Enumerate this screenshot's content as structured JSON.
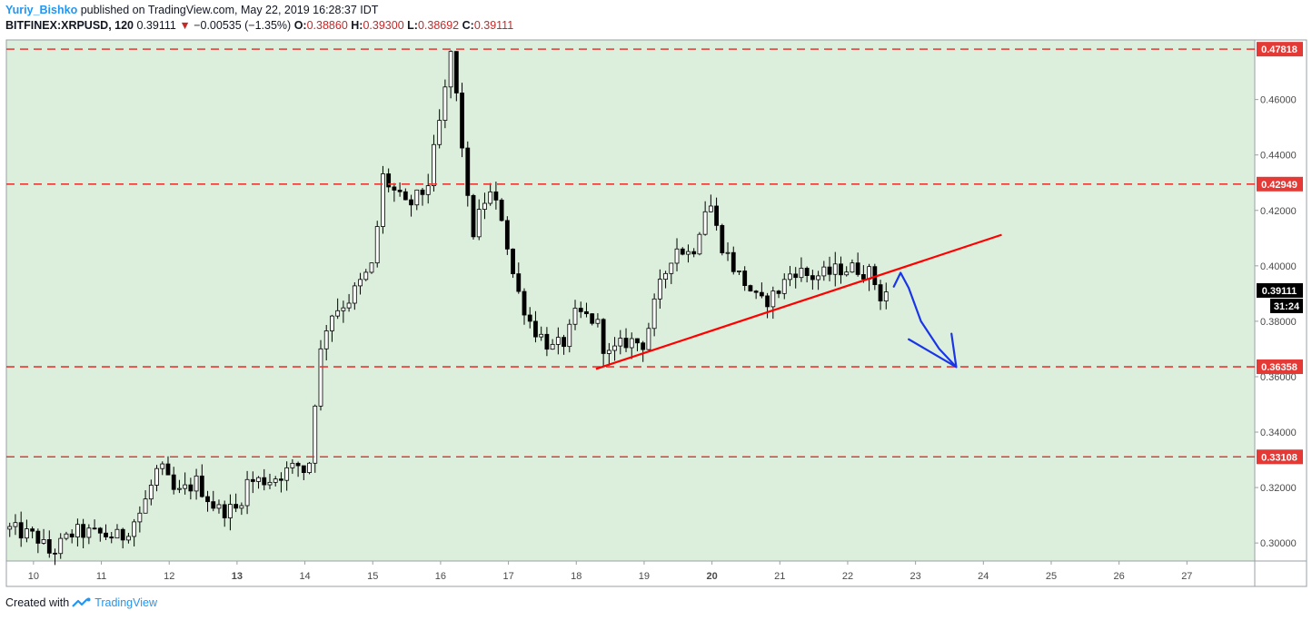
{
  "header": {
    "author": "Yuriy_Bishko",
    "published": "published on TradingView.com, May 22, 2019 16:28:37 IDT",
    "symbol": "BITFINEX:XRPUSD, 120",
    "last": "0.39111",
    "change": "−0.00535 (−1.35%)",
    "o_label": "O:",
    "o": "0.38860",
    "h_label": "H:",
    "h": "0.39300",
    "l_label": "L:",
    "l": "0.38692",
    "c_label": "C:",
    "c": "0.39111"
  },
  "footer": {
    "created": "Created with",
    "brand": "TradingView"
  },
  "colors": {
    "plot_bg": "#dcefdc",
    "level_line": "#e53935",
    "trend_line": "#ff0000",
    "arrow": "#1a35e8",
    "bull_candle": "#ffffff",
    "bear_candle": "#000000"
  },
  "chart_data": {
    "type": "candlestick",
    "y_range": [
      0.2935,
      0.4815
    ],
    "x_range": [
      9.6,
      28.0
    ],
    "y_ticks": [
      "0.30000",
      "0.32000",
      "0.34000",
      "0.36000",
      "0.38000",
      "0.40000",
      "0.42000",
      "0.44000",
      "0.46000"
    ],
    "x_ticks": [
      {
        "label": "10",
        "x": 10,
        "bold": false
      },
      {
        "label": "11",
        "x": 11,
        "bold": false
      },
      {
        "label": "12",
        "x": 12,
        "bold": false
      },
      {
        "label": "13",
        "x": 13,
        "bold": true
      },
      {
        "label": "14",
        "x": 14,
        "bold": false
      },
      {
        "label": "15",
        "x": 15,
        "bold": false
      },
      {
        "label": "16",
        "x": 16,
        "bold": false
      },
      {
        "label": "17",
        "x": 17,
        "bold": false
      },
      {
        "label": "18",
        "x": 18,
        "bold": false
      },
      {
        "label": "19",
        "x": 19,
        "bold": false
      },
      {
        "label": "20",
        "x": 20,
        "bold": true
      },
      {
        "label": "21",
        "x": 21,
        "bold": false
      },
      {
        "label": "22",
        "x": 22,
        "bold": false
      },
      {
        "label": "23",
        "x": 23,
        "bold": false
      },
      {
        "label": "24",
        "x": 24,
        "bold": false
      },
      {
        "label": "25",
        "x": 25,
        "bold": false
      },
      {
        "label": "26",
        "x": 26,
        "bold": false
      },
      {
        "label": "27",
        "x": 27,
        "bold": false
      }
    ],
    "horizontal_levels": [
      "0.47818",
      "0.42949",
      "0.36358",
      "0.33108"
    ],
    "current_price": "0.39111",
    "countdown": "31:24",
    "trendline": {
      "x1": 18.29,
      "y1": 0.3628,
      "x2": 24.27,
      "y2": 0.4112
    },
    "projection_arrow": [
      [
        22.68,
        0.3925
      ],
      [
        22.78,
        0.3975
      ],
      [
        22.9,
        0.392
      ],
      [
        23.08,
        0.38
      ],
      [
        23.35,
        0.37
      ],
      [
        23.6,
        0.3635
      ]
    ],
    "arrow_head": [
      [
        22.9,
        0.3735
      ],
      [
        23.6,
        0.3635
      ],
      [
        23.53,
        0.3755
      ]
    ],
    "candle_keypoints": [
      [
        9.65,
        0.305
      ],
      [
        10.05,
        0.302
      ],
      [
        10.25,
        0.296
      ],
      [
        10.6,
        0.304
      ],
      [
        11.0,
        0.303
      ],
      [
        11.3,
        0.302
      ],
      [
        11.6,
        0.312
      ],
      [
        11.85,
        0.328
      ],
      [
        12.1,
        0.317
      ],
      [
        12.4,
        0.322
      ],
      [
        12.7,
        0.312
      ],
      [
        13.0,
        0.312
      ],
      [
        13.15,
        0.322
      ],
      [
        13.5,
        0.323
      ],
      [
        13.9,
        0.328
      ],
      [
        14.05,
        0.325
      ],
      [
        14.2,
        0.365
      ],
      [
        14.35,
        0.382
      ],
      [
        14.65,
        0.388
      ],
      [
        15.0,
        0.4
      ],
      [
        15.15,
        0.432
      ],
      [
        15.5,
        0.421
      ],
      [
        15.8,
        0.428
      ],
      [
        16.05,
        0.46
      ],
      [
        16.15,
        0.477
      ],
      [
        16.3,
        0.448
      ],
      [
        16.45,
        0.41
      ],
      [
        16.7,
        0.427
      ],
      [
        16.9,
        0.418
      ],
      [
        17.1,
        0.393
      ],
      [
        17.35,
        0.378
      ],
      [
        17.65,
        0.37
      ],
      [
        17.85,
        0.373
      ],
      [
        18.0,
        0.383
      ],
      [
        18.3,
        0.38
      ],
      [
        18.45,
        0.367
      ],
      [
        18.75,
        0.373
      ],
      [
        19.0,
        0.372
      ],
      [
        19.2,
        0.39
      ],
      [
        19.45,
        0.407
      ],
      [
        19.7,
        0.404
      ],
      [
        19.95,
        0.425
      ],
      [
        20.1,
        0.41
      ],
      [
        20.35,
        0.398
      ],
      [
        20.55,
        0.392
      ],
      [
        20.7,
        0.386
      ],
      [
        20.95,
        0.39
      ],
      [
        21.2,
        0.399
      ],
      [
        21.45,
        0.396
      ],
      [
        21.7,
        0.397
      ],
      [
        21.9,
        0.399
      ],
      [
        22.15,
        0.399
      ],
      [
        22.35,
        0.397
      ],
      [
        22.48,
        0.389
      ],
      [
        22.58,
        0.391
      ]
    ]
  }
}
